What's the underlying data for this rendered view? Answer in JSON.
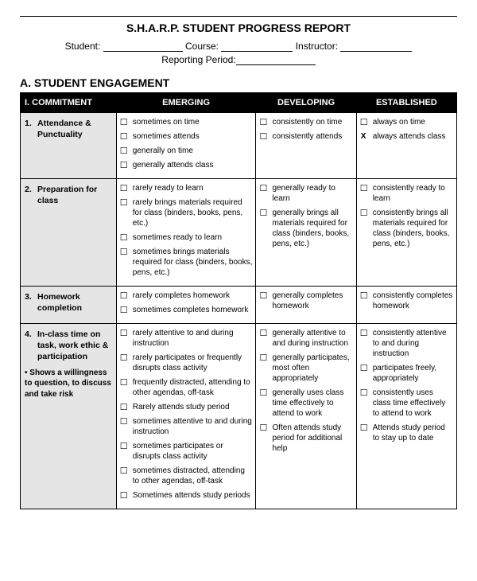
{
  "title": "S.H.A.R.P. STUDENT PROGRESS REPORT",
  "form": {
    "student_label": "Student:",
    "course_label": "Course:",
    "instructor_label": "Instructor:",
    "reporting_label": "Reporting Period:"
  },
  "section": "A.  STUDENT ENGAGEMENT",
  "columns": {
    "c0": "I.   COMMITMENT",
    "c1": "EMERGING",
    "c2": "DEVELOPING",
    "c3": "ESTABLISHED"
  },
  "rows": [
    {
      "label_num": "1.",
      "label_text": "Attendance & Punctuality",
      "emerging": [
        "sometimes on time",
        "sometimes attends",
        "generally on time",
        "generally attends class"
      ],
      "developing": [
        "consistently on time",
        "consistently attends"
      ],
      "established": [
        "always on time",
        "always attends class"
      ],
      "established_x": [
        false,
        true
      ]
    },
    {
      "label_num": "2.",
      "label_text": "Preparation for class",
      "emerging": [
        "rarely ready to learn",
        "rarely brings materials required for class (binders, books, pens, etc.)",
        "sometimes ready to learn",
        "sometimes brings materials required for class (binders, books, pens, etc.)"
      ],
      "developing": [
        "generally ready to learn",
        "generally brings all materials required for class (binders, books, pens, etc.)"
      ],
      "established": [
        "consistently ready to learn",
        "consistently brings all materials required for class (binders, books, pens, etc.)"
      ],
      "established_x": [
        false,
        false
      ]
    },
    {
      "label_num": "3.",
      "label_text": "Homework completion",
      "emerging": [
        "rarely completes homework",
        "sometimes completes homework"
      ],
      "developing": [
        "generally completes homework"
      ],
      "established": [
        "consistently completes homework"
      ],
      "established_x": [
        false
      ]
    },
    {
      "label_num": "4.",
      "label_text": "In-class time on task, work ethic & participation",
      "sublabel": "• Shows a willingness to question, to discuss and take risk",
      "emerging": [
        "rarely attentive to and during instruction",
        "rarely participates or frequently disrupts class activity",
        "frequently distracted, attending to other agendas, off-task",
        "Rarely attends study period",
        "sometimes attentive to and during instruction",
        "sometimes participates or disrupts class activity",
        "sometimes distracted, attending to other agendas, off-task",
        "Sometimes attends study periods"
      ],
      "developing": [
        "generally attentive to and during instruction",
        "generally participates, most often appropriately",
        "generally uses class time effectively to attend to work",
        "Often attends study period for additional help"
      ],
      "established": [
        "consistently attentive to and during instruction",
        "participates freely, appropriately",
        "consistently uses class time effectively to attend to work",
        "Attends study period to stay up to date"
      ],
      "established_x": [
        false,
        false,
        false,
        false
      ]
    }
  ]
}
